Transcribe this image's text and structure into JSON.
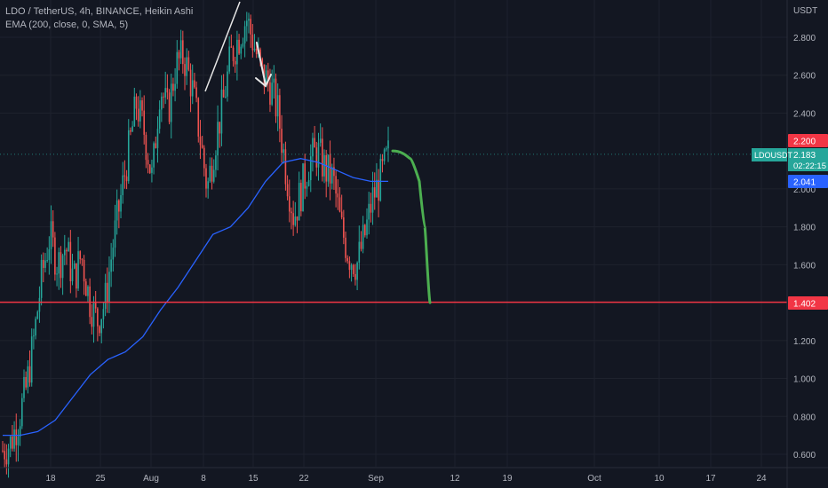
{
  "legend": {
    "line1": "LDO / TetherUS, 4h, BINANCE, Heikin Ashi",
    "line2": "EMA (200, close, 0, SMA, 5)"
  },
  "colors": {
    "background": "#131722",
    "up": "#26a69a",
    "down": "#ef5350",
    "ema": "#2962ff",
    "support": "#f23645",
    "projection": "#4caf50",
    "annotation": "#e6e6e6",
    "axis_text": "#b2b5be"
  },
  "chart_data": {
    "type": "candlestick",
    "symbol": "LDOUSDT",
    "unit_label": "USDT",
    "y_ticks": [
      "2.800",
      "2.600",
      "2.400",
      "2.000",
      "1.800",
      "1.600",
      "1.200",
      "1.000",
      "0.800",
      "0.600"
    ],
    "ylim": [
      0.56,
      3.0
    ],
    "x_ticks": [
      "18",
      "25",
      "Aug",
      "8",
      "15",
      "22",
      "Sep",
      "12",
      "19",
      "Oct",
      "10",
      "17",
      "24"
    ],
    "price_labels": {
      "upper": "2.200",
      "last_symbol": "LDOUSDT",
      "last_price": "2.183",
      "countdown": "02:22:15",
      "ema_value": "2.041",
      "support": "1.402"
    },
    "support_level": 1.402,
    "last_price": 2.183,
    "ema_series": [
      0.7,
      0.7,
      0.72,
      0.78,
      0.9,
      1.02,
      1.1,
      1.14,
      1.22,
      1.36,
      1.48,
      1.62,
      1.76,
      1.8,
      1.9,
      2.04,
      2.14,
      2.16,
      2.14,
      2.1,
      2.06,
      2.04,
      2.04
    ],
    "projection": [
      2.2,
      2.16,
      2.04,
      1.8,
      1.4
    ],
    "approx_closes": [
      0.62,
      0.66,
      0.78,
      0.95,
      1.22,
      1.55,
      1.75,
      1.6,
      1.7,
      1.52,
      1.65,
      1.42,
      1.3,
      1.4,
      1.7,
      1.95,
      2.2,
      2.45,
      2.3,
      2.05,
      2.55,
      2.4,
      2.65,
      2.7,
      2.55,
      2.3,
      2.0,
      2.25,
      2.45,
      2.7,
      2.8,
      2.9,
      2.75,
      2.6,
      2.55,
      2.4,
      2.1,
      1.85,
      2.0,
      2.15,
      2.2,
      2.1,
      2.05,
      1.8,
      1.65,
      1.6,
      1.75,
      1.95,
      2.05,
      2.18
    ]
  }
}
